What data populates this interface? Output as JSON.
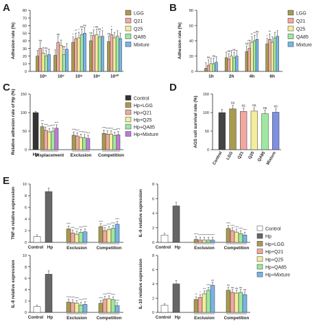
{
  "figure": {
    "panel_letters": [
      "A",
      "B",
      "C",
      "D",
      "E"
    ]
  },
  "chart_data": [
    {
      "panel": "A",
      "type": "bar",
      "ylabel": "Adhesion rate (%)",
      "categories": [
        "10⁶",
        "10⁷",
        "10⁸",
        "10⁹",
        "10¹⁰"
      ],
      "ylim": [
        0,
        80
      ],
      "yticks": [
        0,
        10,
        20,
        30,
        40,
        50,
        60,
        70,
        80
      ],
      "legend_position": "right",
      "series": [
        {
          "name": "LGG",
          "color": "#a89a50",
          "values": [
            20,
            21,
            38,
            40,
            39
          ]
        },
        {
          "name": "Q21",
          "color": "#f0a8a0",
          "values": [
            30,
            38,
            43,
            47,
            48
          ]
        },
        {
          "name": "Q25",
          "color": "#f3ee9c",
          "values": [
            24,
            34,
            44,
            48,
            44
          ]
        },
        {
          "name": "QA85",
          "color": "#9ee8a0",
          "values": [
            20,
            22,
            48,
            45,
            46
          ]
        },
        {
          "name": "Mixture",
          "color": "#78b4e8",
          "values": [
            22,
            29,
            50,
            46,
            43
          ]
        }
      ],
      "annotations": [
        "ns",
        "ns",
        "ns",
        "ns",
        "*",
        "**",
        "*",
        "ns",
        "ns",
        "ns",
        "*",
        "ns",
        "ns",
        "*",
        "ns",
        "*"
      ]
    },
    {
      "panel": "B",
      "type": "bar",
      "ylabel": "Adhesion rate (%)",
      "categories": [
        "1h",
        "2h",
        "4h",
        "6h"
      ],
      "ylim": [
        0,
        80
      ],
      "yticks": [
        0,
        20,
        40,
        60,
        80
      ],
      "legend_position": "right",
      "series": [
        {
          "name": "LGG",
          "color": "#a89a50",
          "values": [
            4,
            18,
            26,
            36
          ]
        },
        {
          "name": "Q21",
          "color": "#f0a8a0",
          "values": [
            8,
            16,
            30,
            42
          ]
        },
        {
          "name": "Q25",
          "color": "#f3ee9c",
          "values": [
            10,
            20,
            38,
            38
          ]
        },
        {
          "name": "QA85",
          "color": "#9ee8a0",
          "values": [
            10,
            18,
            40,
            44
          ]
        },
        {
          "name": "Mixture",
          "color": "#78b4e8",
          "values": [
            12,
            20,
            42,
            46
          ]
        }
      ],
      "annotations": [
        "ns",
        "ns",
        "ns",
        "ns",
        "ns",
        "ns",
        "**",
        "**",
        "ns",
        "*",
        "**"
      ]
    },
    {
      "panel": "C",
      "type": "bar",
      "ylabel": "Relative adhesion rate of Hp (%)",
      "categories": [
        "Hp",
        "Displacement",
        "Exclusion",
        "Competition"
      ],
      "ylim": [
        0,
        150
      ],
      "yticks": [
        0,
        50,
        100,
        150
      ],
      "legend_position": "right",
      "series": [
        {
          "name": "Control",
          "color": "#333333",
          "values": [
            100,
            null,
            null,
            null
          ]
        },
        {
          "name": "Hp+LGG",
          "color": "#a89a50",
          "values": [
            null,
            62,
            39,
            44
          ]
        },
        {
          "name": "Hp+Q21",
          "color": "#f0a8a0",
          "values": [
            null,
            52,
            37,
            42
          ]
        },
        {
          "name": "Hp+Q25",
          "color": "#f3ee9c",
          "values": [
            null,
            48,
            33,
            42
          ]
        },
        {
          "name": "Hp+QA85",
          "color": "#9ee8a0",
          "values": [
            null,
            50,
            32,
            38
          ]
        },
        {
          "name": "Hp+Mixture",
          "color": "#c07ad8",
          "values": [
            null,
            58,
            30,
            40
          ]
        }
      ],
      "annotations": [
        "***",
        "****",
        "****",
        "****",
        "****",
        "****",
        "****",
        "****",
        "****",
        "****",
        "****",
        "****",
        "****",
        "****",
        "****"
      ]
    },
    {
      "panel": "D",
      "type": "bar",
      "ylabel": "AGS cell survival rate (%)",
      "categories": [
        "Control",
        "LGG",
        "Q21",
        "Q25",
        "QA85",
        "Mixture"
      ],
      "ylim": [
        0,
        150
      ],
      "yticks": [
        0,
        50,
        100,
        150
      ],
      "colors": [
        "#444444",
        "#a89a50",
        "#f0a8a0",
        "#f3ee9c",
        "#9ee8a0",
        "#8090e0"
      ],
      "values": [
        100,
        110,
        103,
        104,
        97,
        101
      ],
      "annotations": [
        "ns",
        "ns",
        "ns",
        "ns",
        "ns"
      ]
    },
    {
      "panel": "E",
      "type": "bar",
      "ylabel": "TNF-α relative expression",
      "categories": [
        "Control",
        "Hp",
        "Exclusion",
        "Competition"
      ],
      "ylim": [
        0,
        10
      ],
      "yticks": [
        0,
        2,
        4,
        6,
        8,
        10
      ],
      "series": [
        {
          "name": "Control",
          "color": "#ffffff",
          "values": [
            1.0,
            null,
            null,
            null
          ]
        },
        {
          "name": "Hp",
          "color": "#666666",
          "values": [
            null,
            8.7,
            null,
            null
          ]
        },
        {
          "name": "Hp+LGG",
          "color": "#a89a50",
          "values": [
            null,
            null,
            2.3,
            2.7
          ]
        },
        {
          "name": "Hp+Q21",
          "color": "#f0a8a0",
          "values": [
            null,
            null,
            1.6,
            2.0
          ]
        },
        {
          "name": "Hp+Q25",
          "color": "#f3ee9c",
          "values": [
            null,
            null,
            1.4,
            2.2
          ]
        },
        {
          "name": "Hp+QA85",
          "color": "#9ee8a0",
          "values": [
            null,
            null,
            1.7,
            2.4
          ]
        },
        {
          "name": "Hp+Mixture",
          "color": "#78b4e8",
          "values": [
            null,
            null,
            1.8,
            3.1
          ]
        }
      ],
      "annotations": [
        "****",
        "****",
        "****",
        "****",
        "****",
        "****",
        "****",
        "****",
        "****",
        "****"
      ]
    },
    {
      "panel": "E",
      "type": "bar",
      "ylabel": "IL-6 relative expression",
      "categories": [
        "Control",
        "Hp",
        "Exclusion",
        "Competition"
      ],
      "ylim": [
        0,
        8
      ],
      "yticks": [
        0,
        2,
        4,
        6,
        8
      ],
      "series": [
        {
          "name": "Control",
          "color": "#ffffff",
          "values": [
            1.0,
            null,
            null,
            null
          ]
        },
        {
          "name": "Hp",
          "color": "#666666",
          "values": [
            null,
            5.0,
            null,
            null
          ]
        },
        {
          "name": "Hp+LGG",
          "color": "#a89a50",
          "values": [
            null,
            null,
            0.4,
            1.9
          ]
        },
        {
          "name": "Hp+Q21",
          "color": "#f0a8a0",
          "values": [
            null,
            null,
            0.3,
            1.6
          ]
        },
        {
          "name": "Hp+Q25",
          "color": "#f3ee9c",
          "values": [
            null,
            null,
            0.3,
            1.4
          ]
        },
        {
          "name": "Hp+QA85",
          "color": "#9ee8a0",
          "values": [
            null,
            null,
            0.3,
            1.2
          ]
        },
        {
          "name": "Hp+Mixture",
          "color": "#78b4e8",
          "values": [
            null,
            null,
            0.3,
            1.0
          ]
        }
      ],
      "annotations": [
        "****",
        "****",
        "****",
        "****",
        "****",
        "****",
        "****",
        "****",
        "****",
        "****"
      ]
    },
    {
      "panel": "E",
      "type": "bar",
      "ylabel": "IL-8 relative expression",
      "categories": [
        "Control",
        "Hp",
        "Exclusion",
        "Competition"
      ],
      "ylim": [
        0,
        10
      ],
      "yticks": [
        0,
        2,
        4,
        6,
        8,
        10
      ],
      "series": [
        {
          "name": "Control",
          "color": "#ffffff",
          "values": [
            1.0,
            null,
            null,
            null
          ]
        },
        {
          "name": "Hp",
          "color": "#666666",
          "values": [
            null,
            6.7,
            null,
            null
          ]
        },
        {
          "name": "Hp+LGG",
          "color": "#a89a50",
          "values": [
            null,
            null,
            1.8,
            1.6
          ]
        },
        {
          "name": "Hp+Q21",
          "color": "#f0a8a0",
          "values": [
            null,
            null,
            1.7,
            2.3
          ]
        },
        {
          "name": "Hp+Q25",
          "color": "#f3ee9c",
          "values": [
            null,
            null,
            1.6,
            2.4
          ]
        },
        {
          "name": "Hp+QA85",
          "color": "#9ee8a0",
          "values": [
            null,
            null,
            1.3,
            2.2
          ]
        },
        {
          "name": "Hp+Mixture",
          "color": "#78b4e8",
          "values": [
            null,
            null,
            1.4,
            1.2
          ]
        }
      ],
      "annotations": [
        "****",
        "****",
        "****",
        "****",
        "****",
        "****",
        "****",
        "****",
        "****",
        "****"
      ]
    },
    {
      "panel": "E",
      "type": "bar",
      "ylabel": "IL-10 relative expression",
      "categories": [
        "Control",
        "Hp",
        "Exclusion",
        "Competition"
      ],
      "ylim": [
        0,
        8
      ],
      "yticks": [
        0,
        2,
        4,
        6,
        8
      ],
      "legend_position": "right",
      "series": [
        {
          "name": "Control",
          "color": "#ffffff",
          "values": [
            1.0,
            null,
            null,
            null
          ]
        },
        {
          "name": "Hp",
          "color": "#666666",
          "values": [
            null,
            4.0,
            null,
            null
          ]
        },
        {
          "name": "Hp+LGG",
          "color": "#a89a50",
          "values": [
            null,
            null,
            1.8,
            3.1
          ]
        },
        {
          "name": "Hp+Q21",
          "color": "#f0a8a0",
          "values": [
            null,
            null,
            2.1,
            2.8
          ]
        },
        {
          "name": "Hp+Q25",
          "color": "#f3ee9c",
          "values": [
            null,
            null,
            2.6,
            2.7
          ]
        },
        {
          "name": "Hp+QA85",
          "color": "#9ee8a0",
          "values": [
            null,
            null,
            3.1,
            2.8
          ]
        },
        {
          "name": "Hp+Mixture",
          "color": "#78b4e8",
          "values": [
            null,
            null,
            3.8,
            2.5
          ]
        }
      ],
      "annotations": [
        "**",
        "*",
        "***",
        "****",
        "ns",
        "ns",
        "ns",
        "ns",
        "ns",
        "ns"
      ]
    }
  ]
}
